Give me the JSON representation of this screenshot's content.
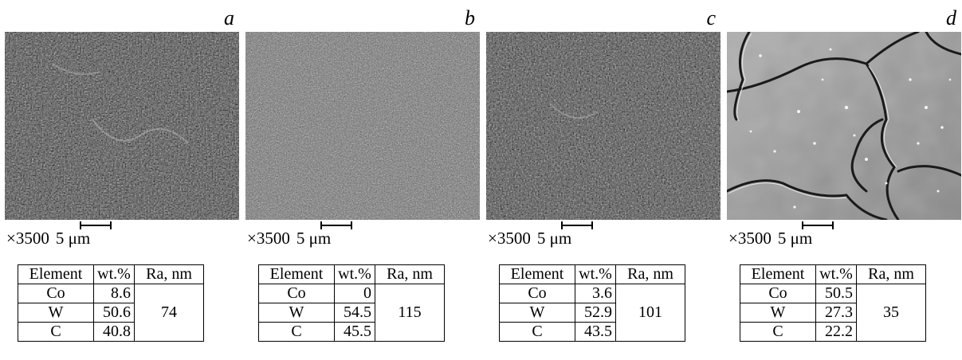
{
  "panels": [
    {
      "label": "a",
      "magnification": "×3500",
      "scale": "5 μm",
      "table": {
        "headers": [
          "Element",
          "wt.%",
          "Ra, nm"
        ],
        "rows": [
          [
            "Co",
            "8.6"
          ],
          [
            "W",
            "50.6"
          ],
          [
            "C",
            "40.8"
          ]
        ],
        "ra": "74"
      },
      "image": {
        "tone": "dark-grainy",
        "base": "#4a4a4a"
      }
    },
    {
      "label": "b",
      "magnification": "×3500",
      "scale": "5 μm",
      "table": {
        "headers": [
          "Element",
          "wt.%",
          "Ra, nm"
        ],
        "rows": [
          [
            "Co",
            "0"
          ],
          [
            "W",
            "54.5"
          ],
          [
            "C",
            "45.5"
          ]
        ],
        "ra": "115"
      },
      "image": {
        "tone": "grey-grainy",
        "base": "#6e6e6e"
      }
    },
    {
      "label": "c",
      "magnification": "×3500",
      "scale": "5 μm",
      "table": {
        "headers": [
          "Element",
          "wt.%",
          "Ra, nm"
        ],
        "rows": [
          [
            "Co",
            "3.6"
          ],
          [
            "W",
            "52.9"
          ],
          [
            "C",
            "43.5"
          ]
        ],
        "ra": "101"
      },
      "image": {
        "tone": "dark-grainy",
        "base": "#4c4c4c"
      }
    },
    {
      "label": "d",
      "magnification": "×3500",
      "scale": "5 μm",
      "table": {
        "headers": [
          "Element",
          "wt.%",
          "Ra, nm"
        ],
        "rows": [
          [
            "Co",
            "50.5"
          ],
          [
            "W",
            "27.3"
          ],
          [
            "C",
            "22.2"
          ]
        ],
        "ra": "35"
      },
      "image": {
        "tone": "smooth-with-grain-boundaries",
        "base": "#9a9a9a"
      }
    }
  ]
}
